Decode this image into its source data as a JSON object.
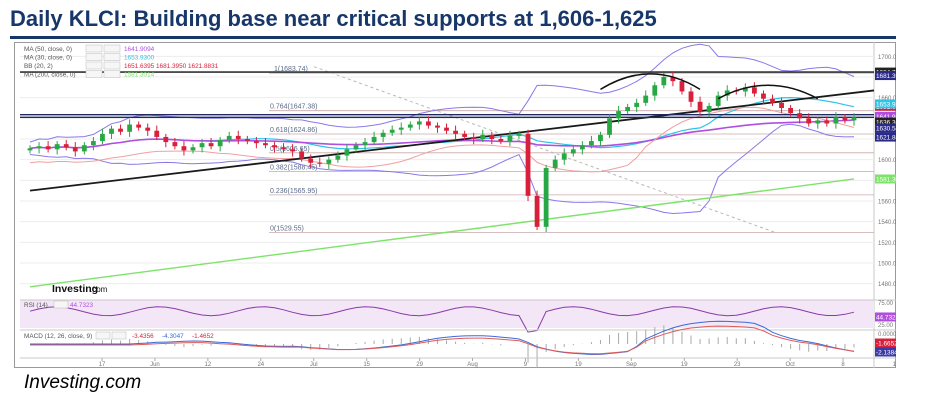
{
  "header": {
    "title": "Daily KLCI: Building base near critical supports at 1,606-1,625"
  },
  "footer": {
    "source": "Investing.com"
  },
  "colors": {
    "title": "#17376b",
    "up_candle": "#27a844",
    "down_candle": "#d8203a",
    "ma50": "#b04ee0",
    "ma30": "#2ec4e8",
    "bollinger": "#8a78e8",
    "ma200": "#7ee36a",
    "trendline": "#1a1a1a",
    "support": "#1f2a63",
    "fib": "#9ec6d8"
  },
  "chart_data": {
    "type": "candlestick",
    "watermark": "Investing.com",
    "legend": [
      {
        "label": "MA (50, close, 0)",
        "value": "1641.9094",
        "color": "#b04ee0"
      },
      {
        "label": "MA (30, close, 0)",
        "value": "1653.9300",
        "color": "#2ec4e8"
      },
      {
        "label": "BB (20, 2)",
        "value": "1651.6395  1681.3950  1621.8831",
        "color": "#d8203a"
      },
      {
        "label": "MA (200, close, 0)",
        "value": "1581.3014",
        "color": "#7ee36a"
      }
    ],
    "y_ticks": [
      1480,
      1500,
      1520,
      1540,
      1560,
      1580,
      1600,
      1620,
      1640,
      1660,
      1680,
      1700
    ],
    "ylim": [
      1470,
      1710
    ],
    "x_ticks": [
      "17",
      "Jun",
      "12",
      "24",
      "Jul",
      "15",
      "29",
      "Aug",
      "9",
      "19",
      "Sep",
      "19",
      "23",
      "Oct",
      "8",
      "17"
    ],
    "fib_levels": [
      {
        "label": "1(1683.74)",
        "value": 1683.74
      },
      {
        "label": "0.764(1647.38)",
        "value": 1647.38
      },
      {
        "label": "0.618(1624.86)",
        "value": 1624.86
      },
      {
        "label": "0.5(1606.65)",
        "value": 1606.65
      },
      {
        "label": "0.382(1588.45)",
        "value": 1588.45
      },
      {
        "label": "0.236(1565.95)",
        "value": 1565.95
      },
      {
        "label": "0(1529.55)",
        "value": 1529.55
      }
    ],
    "price_labels": [
      {
        "text": "1684.76",
        "value": 1684.76,
        "color": "#222222"
      },
      {
        "text": "1681.39",
        "value": 1681.39,
        "color": "#2a2a8a"
      },
      {
        "text": "1651.64",
        "value": 1651.64,
        "color": "#d8203a"
      },
      {
        "text": "1653.93",
        "value": 1653.93,
        "color": "#2ec4e8"
      },
      {
        "text": "1641.91",
        "value": 1641.91,
        "color": "#b04ee0"
      },
      {
        "text": "1636.36",
        "value": 1636.36,
        "color": "#222222"
      },
      {
        "text": "1630.54",
        "value": 1630.54,
        "color": "#2a2a8a"
      },
      {
        "text": "1621.88",
        "value": 1621.88,
        "color": "#2a2a8a"
      },
      {
        "text": "1581.30",
        "value": 1581.3,
        "color": "#7ee36a"
      }
    ],
    "support_lines": [
      1643.5,
      1641.0
    ],
    "resistance_line": 1684.76,
    "trendline": {
      "from": 1570,
      "to": 1667
    },
    "ma200": {
      "from": 1477,
      "to": 1581.3
    },
    "series": [
      {
        "name": "Close",
        "values": [
          1611,
          1613,
          1610,
          1615,
          1612,
          1608,
          1614,
          1618,
          1625,
          1630,
          1627,
          1634,
          1631,
          1628,
          1622,
          1617,
          1613,
          1609,
          1612,
          1616,
          1613,
          1619,
          1623,
          1620,
          1618,
          1616,
          1614,
          1612,
          1610,
          1608,
          1601,
          1597,
          1596,
          1600,
          1604,
          1610,
          1614,
          1617,
          1622,
          1626,
          1629,
          1631,
          1634,
          1637,
          1633,
          1631,
          1628,
          1625,
          1622,
          1620,
          1624,
          1620,
          1618,
          1623,
          1625,
          1565,
          1535,
          1592,
          1600,
          1606,
          1610,
          1614,
          1618,
          1624,
          1640,
          1647,
          1651,
          1655,
          1662,
          1672,
          1680,
          1676,
          1666,
          1656,
          1646,
          1652,
          1662,
          1667,
          1666,
          1670,
          1664,
          1659,
          1655,
          1650,
          1645,
          1640,
          1635,
          1638,
          1635,
          1641,
          1638,
          1641
        ]
      }
    ],
    "rsi": {
      "label": "RSI (14)",
      "value": "44.7323",
      "ylim": [
        25,
        75
      ],
      "ticks": [
        75,
        25
      ]
    },
    "macd": {
      "label": "MACD (12, 26, close, 9)",
      "values_text": [
        "-3.4356",
        "-4.3047",
        "-1.4652"
      ],
      "side_values": [
        "-1.6652",
        "-2.1384"
      ],
      "ticks": [
        0,
        -5
      ]
    }
  }
}
